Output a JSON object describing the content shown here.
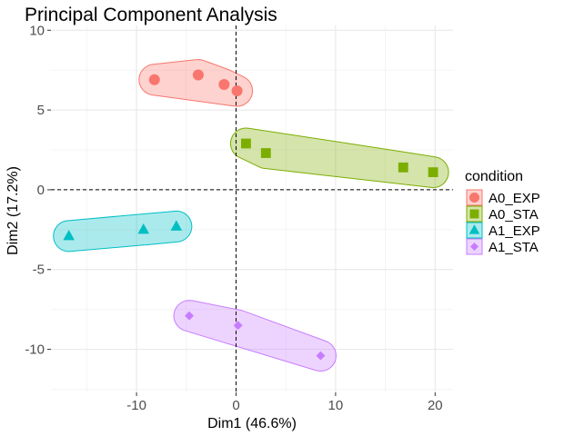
{
  "chart_data": {
    "type": "scatter",
    "title": "Principal Component Analysis",
    "xlabel": "Dim1 (46.6%)",
    "ylabel": "Dim2 (17.2%)",
    "xlim": [
      -18.6,
      21.8
    ],
    "ylim": [
      -12.7,
      10.3
    ],
    "x_ticks": [
      -10,
      0,
      10,
      20
    ],
    "x_tick_labels": [
      "-10",
      "0",
      "10",
      "20"
    ],
    "y_ticks": [
      -10,
      -5,
      0,
      5,
      10
    ],
    "y_tick_labels": [
      "-10",
      "-5",
      "0",
      "5",
      "10"
    ],
    "grid": true,
    "reference_lines": {
      "x": 0,
      "y": 0,
      "style": "dashed"
    },
    "legend_title": "condition",
    "legend_position": "right",
    "series": [
      {
        "name": "A0_EXP",
        "color": "#F8766D",
        "shape": "circle",
        "points": [
          [
            -8.2,
            6.9
          ],
          [
            -3.8,
            7.2
          ],
          [
            -1.2,
            6.6
          ],
          [
            0.1,
            6.2
          ]
        ]
      },
      {
        "name": "A0_STA",
        "color": "#7CAE00",
        "shape": "square",
        "points": [
          [
            1.0,
            2.9
          ],
          [
            3.0,
            2.3
          ],
          [
            16.8,
            1.4
          ],
          [
            19.8,
            1.1
          ]
        ]
      },
      {
        "name": "A1_EXP",
        "color": "#00BFC4",
        "shape": "triangle",
        "points": [
          [
            -16.8,
            -2.9
          ],
          [
            -9.3,
            -2.5
          ],
          [
            -6.0,
            -2.3
          ]
        ]
      },
      {
        "name": "A1_STA",
        "color": "#C77CFF",
        "shape": "diamond",
        "points": [
          [
            -4.7,
            -7.9
          ],
          [
            0.2,
            -8.5
          ],
          [
            8.5,
            -10.4
          ]
        ]
      }
    ]
  }
}
